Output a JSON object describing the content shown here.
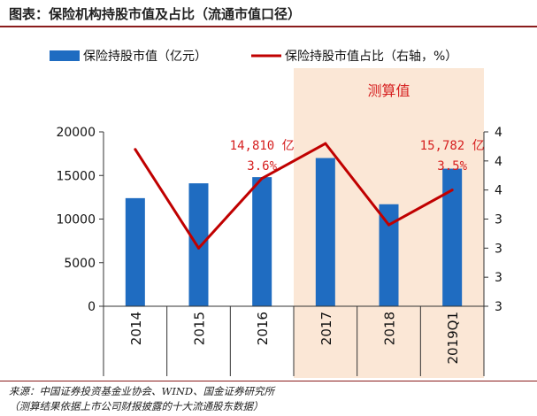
{
  "title": "图表：保险机构持股市值及占比（流通市值口径）",
  "source": {
    "line1": "来源：中国证券投资基金业协会、WIND、国金证券研究所",
    "line2": "（测算结果依据上市公司财报披露的十大流通股东数据）"
  },
  "chart_data": {
    "type": "bar+line",
    "categories": [
      "2014",
      "2015",
      "2016",
      "2017",
      "2018",
      "2019Q1"
    ],
    "series": [
      {
        "name": "保险持股市值（亿元）",
        "type": "bar",
        "axis": "left",
        "color": "#1f6cc1",
        "values": [
          12400,
          14100,
          14810,
          17000,
          11700,
          15782
        ]
      },
      {
        "name": "保险持股市值占比（右轴，%）",
        "type": "line",
        "axis": "right",
        "color": "#c00000",
        "values": [
          3.85,
          3.0,
          3.6,
          3.9,
          3.2,
          3.5
        ]
      }
    ],
    "y_left": {
      "min": 0,
      "max": 20000,
      "ticks": [
        "0",
        "5000",
        "10000",
        "15000",
        "20000"
      ],
      "tick_values": [
        0,
        5000,
        10000,
        15000,
        20000
      ]
    },
    "y_right": {
      "min": 2.5,
      "max": 4.0,
      "ticks": [
        "3",
        "3",
        "3",
        "3",
        "4",
        "4",
        "4"
      ],
      "tick_values": [
        2.5,
        2.75,
        3.0,
        3.25,
        3.5,
        3.75,
        4.0
      ]
    },
    "shaded_region": {
      "label": "测算值",
      "from_category": "2017",
      "to_category": "2019Q1",
      "color": "#fbe7d6"
    },
    "annotations": [
      {
        "category": "2016",
        "line1": "14,810 亿",
        "line2": "3.6%"
      },
      {
        "category": "2019Q1",
        "line1": "15,782 亿",
        "line2": "3.5%"
      }
    ],
    "legend_position": "top"
  }
}
